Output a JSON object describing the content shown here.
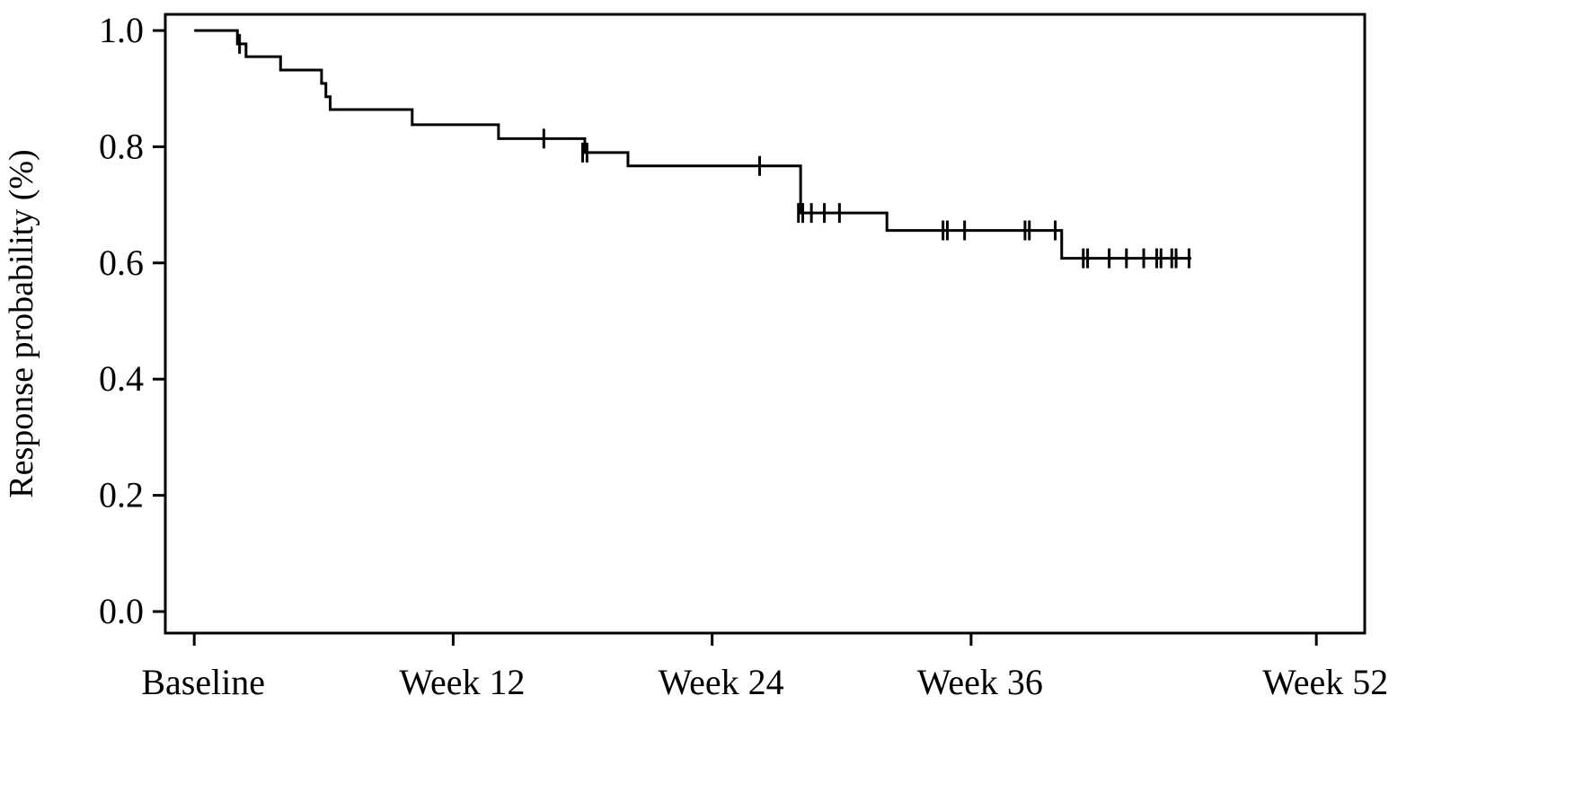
{
  "chart_data": {
    "type": "line",
    "subtype": "kaplan-meier-step",
    "title": "",
    "xlabel": "",
    "ylabel": "Response probability (%)",
    "xlim": [
      -0.3,
      53.2
    ],
    "ylim": [
      0.0,
      1.0
    ],
    "x_ticks": [
      {
        "value": 0,
        "label": "Baseline"
      },
      {
        "value": 12,
        "label": "Week 12"
      },
      {
        "value": 24,
        "label": "Week 24"
      },
      {
        "value": 36,
        "label": "Week 36"
      },
      {
        "value": 52,
        "label": "Week 52"
      }
    ],
    "y_ticks": [
      {
        "value": 0.0,
        "label": "0.0"
      },
      {
        "value": 0.2,
        "label": "0.2"
      },
      {
        "value": 0.4,
        "label": "0.4"
      },
      {
        "value": 0.6,
        "label": "0.6"
      },
      {
        "value": 0.8,
        "label": "0.8"
      },
      {
        "value": 1.0,
        "label": "1.0"
      }
    ],
    "grid": false,
    "legend": "none",
    "line_color": "#000000",
    "series": [
      {
        "steps": [
          [
            0.0,
            1.0
          ],
          [
            2.0,
            0.977
          ],
          [
            2.4,
            0.955
          ],
          [
            4.0,
            0.932
          ],
          [
            5.9,
            0.909
          ],
          [
            6.1,
            0.886
          ],
          [
            6.3,
            0.864
          ],
          [
            10.1,
            0.838
          ],
          [
            14.1,
            0.814
          ],
          [
            18.1,
            0.79
          ],
          [
            20.1,
            0.767
          ],
          [
            28.1,
            0.686
          ],
          [
            32.1,
            0.656
          ],
          [
            40.2,
            0.608
          ]
        ],
        "end_x": 46.2,
        "censored": [
          [
            2.1,
            0.977
          ],
          [
            16.2,
            0.814
          ],
          [
            18.0,
            0.79
          ],
          [
            18.2,
            0.79
          ],
          [
            26.2,
            0.767
          ],
          [
            28.0,
            0.686
          ],
          [
            28.2,
            0.686
          ],
          [
            28.6,
            0.686
          ],
          [
            29.2,
            0.686
          ],
          [
            29.9,
            0.686
          ],
          [
            34.7,
            0.656
          ],
          [
            34.9,
            0.656
          ],
          [
            35.7,
            0.656
          ],
          [
            38.5,
            0.656
          ],
          [
            38.7,
            0.656
          ],
          [
            39.9,
            0.656
          ],
          [
            41.2,
            0.608
          ],
          [
            41.4,
            0.608
          ],
          [
            42.4,
            0.608
          ],
          [
            43.2,
            0.608
          ],
          [
            44.0,
            0.608
          ],
          [
            44.6,
            0.608
          ],
          [
            44.8,
            0.608
          ],
          [
            45.3,
            0.608
          ],
          [
            45.5,
            0.608
          ],
          [
            46.1,
            0.608
          ]
        ]
      }
    ]
  }
}
